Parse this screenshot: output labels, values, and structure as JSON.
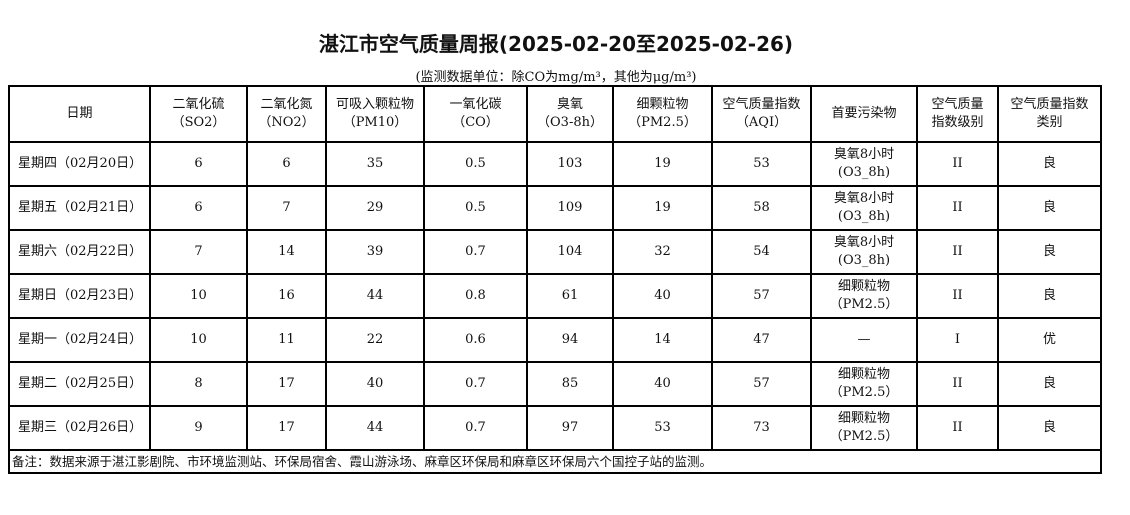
{
  "title": "湛江市空气质量周报(2025-02-20至2025-02-26)",
  "subtitle": "(监测数据单位：除CO为mg/m³，其他为μg/m³)",
  "headers": [
    [
      "日期",
      ""
    ],
    [
      "二氧化硫",
      "（SO2）"
    ],
    [
      "二氧化氮",
      "（NO2）"
    ],
    [
      "可吸入颗粒物",
      "（PM10）"
    ],
    [
      "一氧化碳",
      "（CO）"
    ],
    [
      "臭氧",
      "（O3-8h）"
    ],
    [
      "细颗粒物",
      "（PM2.5）"
    ],
    [
      "空气质量指数",
      "（AQI）"
    ],
    [
      "首要污染物",
      ""
    ],
    [
      "空气质量",
      "指数级别"
    ],
    [
      "空气质量指数",
      "类别"
    ]
  ],
  "rows": [
    {
      "date": "星期四（02月20日）",
      "so2": "6",
      "no2": "6",
      "pm10": "35",
      "co": "0.5",
      "o3": "103",
      "pm25": "19",
      "aqi": "53",
      "pollutant": [
        "臭氧8小时",
        "(O3_8h)"
      ],
      "level": "II",
      "category": "良"
    },
    {
      "date": "星期五（02月21日）",
      "so2": "6",
      "no2": "7",
      "pm10": "29",
      "co": "0.5",
      "o3": "109",
      "pm25": "19",
      "aqi": "58",
      "pollutant": [
        "臭氧8小时",
        "(O3_8h)"
      ],
      "level": "II",
      "category": "良"
    },
    {
      "date": "星期六（02月22日）",
      "so2": "7",
      "no2": "14",
      "pm10": "39",
      "co": "0.7",
      "o3": "104",
      "pm25": "32",
      "aqi": "54",
      "pollutant": [
        "臭氧8小时",
        "(O3_8h)"
      ],
      "level": "II",
      "category": "良"
    },
    {
      "date": "星期日（02月23日）",
      "so2": "10",
      "no2": "16",
      "pm10": "44",
      "co": "0.8",
      "o3": "61",
      "pm25": "40",
      "aqi": "57",
      "pollutant": [
        "细颗粒物",
        "（PM2.5）"
      ],
      "level": "II",
      "category": "良"
    },
    {
      "date": "星期一（02月24日）",
      "so2": "10",
      "no2": "11",
      "pm10": "22",
      "co": "0.6",
      "o3": "94",
      "pm25": "14",
      "aqi": "47",
      "pollutant": [
        "—",
        ""
      ],
      "level": "I",
      "category": "优"
    },
    {
      "date": "星期二（02月25日）",
      "so2": "8",
      "no2": "17",
      "pm10": "40",
      "co": "0.7",
      "o3": "85",
      "pm25": "40",
      "aqi": "57",
      "pollutant": [
        "细颗粒物",
        "（PM2.5）"
      ],
      "level": "II",
      "category": "良"
    },
    {
      "date": "星期三（02月26日）",
      "so2": "9",
      "no2": "17",
      "pm10": "44",
      "co": "0.7",
      "o3": "97",
      "pm25": "53",
      "aqi": "73",
      "pollutant": [
        "细颗粒物",
        "（PM2.5）"
      ],
      "level": "II",
      "category": "良"
    }
  ],
  "note": "备注：数据来源于湛江影剧院、市环境监测站、环保局宿舍、霞山游泳场、麻章区环保局和麻章区环保局六个国控子站的监测。"
}
